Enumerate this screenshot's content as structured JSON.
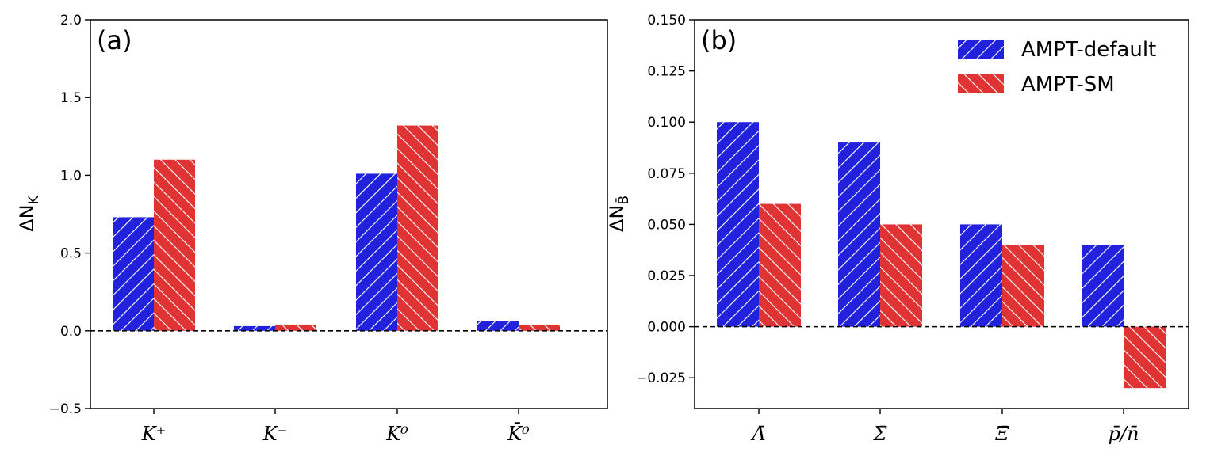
{
  "colors": {
    "default": "#2222dd",
    "sm": "#e03333",
    "hatch": "#ffffff",
    "axis": "#000000"
  },
  "legend": {
    "default_label": "AMPT-default",
    "sm_label": "AMPT-SM",
    "placement": "top-right of panel b"
  },
  "chart_data": [
    {
      "type": "bar",
      "panel_label": "(a)",
      "ylabel": "ΔN_K",
      "categories": [
        "K⁺",
        "K⁻",
        "K⁰",
        "K̄⁰"
      ],
      "ylim": [
        -0.5,
        2.0
      ],
      "yticks": [
        "−0.5",
        "0.0",
        "0.5",
        "1.0",
        "1.5",
        "2.0"
      ],
      "ytick_values": [
        -0.5,
        0.0,
        0.5,
        1.0,
        1.5,
        2.0
      ],
      "zero_line": "dashed",
      "grid": false,
      "series": [
        {
          "name": "AMPT-default",
          "values": [
            0.73,
            0.03,
            1.01,
            0.06
          ]
        },
        {
          "name": "AMPT-SM",
          "values": [
            1.1,
            0.04,
            1.32,
            0.04
          ]
        }
      ]
    },
    {
      "type": "bar",
      "panel_label": "(b)",
      "ylabel": "ΔN_B̄",
      "categories": [
        "Λ̄",
        "Σ̄",
        "Ξ̄",
        "p̄/n̄"
      ],
      "ylim": [
        -0.04,
        0.15
      ],
      "yticks": [
        "−0.025",
        "0.000",
        "0.025",
        "0.050",
        "0.075",
        "0.100",
        "0.125",
        "0.150"
      ],
      "ytick_values": [
        -0.025,
        0.0,
        0.025,
        0.05,
        0.075,
        0.1,
        0.125,
        0.15
      ],
      "zero_line": "dashed",
      "grid": false,
      "series": [
        {
          "name": "AMPT-default",
          "values": [
            0.1,
            0.09,
            0.05,
            0.04
          ]
        },
        {
          "name": "AMPT-SM",
          "values": [
            0.06,
            0.05,
            0.04,
            -0.03
          ]
        }
      ]
    }
  ]
}
